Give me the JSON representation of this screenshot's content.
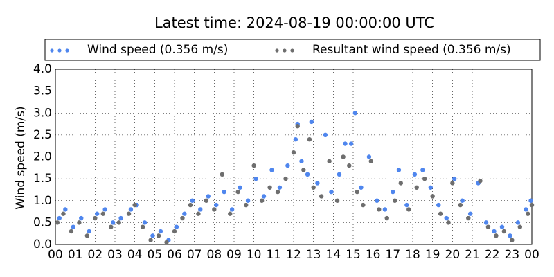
{
  "chart_data": {
    "type": "scatter",
    "title": "Latest time: 2024-08-19 00:00:00 UTC",
    "y_label": "Wind speed (m/s)",
    "xlim": [
      0,
      24
    ],
    "ylim": [
      0,
      4
    ],
    "grid": true,
    "legend": "top",
    "xticks": [
      {
        "value": 0,
        "label": "00"
      },
      {
        "value": 1,
        "label": "01"
      },
      {
        "value": 2,
        "label": "02"
      },
      {
        "value": 3,
        "label": "03"
      },
      {
        "value": 4,
        "label": "04"
      },
      {
        "value": 5,
        "label": "05"
      },
      {
        "value": 6,
        "label": "06"
      },
      {
        "value": 7,
        "label": "07"
      },
      {
        "value": 8,
        "label": "08"
      },
      {
        "value": 9,
        "label": "09"
      },
      10,
      11,
      12,
      13,
      14,
      15,
      16,
      17,
      18,
      19,
      20,
      21,
      22,
      23,
      {
        "value": 24,
        "label": "00"
      }
    ],
    "yticks": [
      {
        "value": 0,
        "label": "0.0"
      },
      {
        "value": 0.5,
        "label": "0.5"
      },
      {
        "value": 1,
        "label": "1.0"
      },
      {
        "value": 1.5,
        "label": "1.5"
      },
      {
        "value": 2,
        "label": "2.0"
      },
      {
        "value": 2.5,
        "label": "2.5"
      },
      {
        "value": 3,
        "label": "3.0"
      },
      {
        "value": 3.5,
        "label": "3.5"
      },
      {
        "value": 4,
        "label": "4.0"
      }
    ],
    "series": [
      {
        "name": "Wind speed (0.356 m/s)",
        "color": "#4f86ee",
        "x": [
          0.2,
          0.5,
          0.9,
          1.3,
          1.7,
          2.1,
          2.5,
          2.9,
          3.3,
          3.8,
          4.1,
          4.5,
          4.9,
          5.3,
          5.7,
          6.1,
          6.5,
          6.9,
          7.3,
          7.7,
          8.1,
          8.5,
          8.9,
          9.3,
          9.7,
          10.1,
          10.5,
          10.9,
          11.3,
          11.7,
          12.1,
          12.2,
          12.4,
          12.7,
          12.9,
          13.2,
          13.6,
          13.9,
          14.3,
          14.6,
          14.9,
          15.1,
          15.4,
          15.8,
          16.2,
          16.6,
          17.0,
          17.3,
          17.7,
          18.1,
          18.5,
          18.9,
          19.3,
          19.7,
          20.1,
          20.5,
          20.9,
          21.3,
          21.7,
          22.1,
          22.5,
          22.9,
          23.3,
          23.7,
          23.95
        ],
        "values": [
          0.6,
          0.8,
          0.4,
          0.6,
          0.3,
          0.7,
          0.8,
          0.5,
          0.6,
          0.8,
          0.9,
          0.5,
          0.2,
          0.3,
          0.1,
          0.4,
          0.7,
          1.0,
          0.8,
          1.1,
          0.9,
          1.2,
          0.8,
          1.3,
          1.0,
          1.5,
          1.1,
          1.7,
          1.3,
          1.8,
          2.4,
          2.75,
          1.9,
          1.6,
          2.8,
          1.4,
          2.5,
          1.2,
          1.6,
          2.3,
          2.3,
          3.0,
          1.3,
          2.0,
          1.0,
          0.8,
          1.2,
          1.7,
          0.9,
          1.6,
          1.7,
          1.3,
          0.9,
          0.6,
          1.5,
          1.0,
          0.7,
          1.4,
          0.5,
          0.3,
          0.4,
          0.2,
          0.5,
          0.8,
          1.0
        ]
      },
      {
        "name": "Resultant wind speed (0.356 m/s)",
        "color": "#6e6e6e",
        "x": [
          0.1,
          0.4,
          0.8,
          1.2,
          1.6,
          2.0,
          2.4,
          2.8,
          3.2,
          3.7,
          4.0,
          4.4,
          4.8,
          5.2,
          5.6,
          6.0,
          6.4,
          6.8,
          7.2,
          7.6,
          8.0,
          8.4,
          8.8,
          9.2,
          9.6,
          10.0,
          10.4,
          10.8,
          11.2,
          11.6,
          12.0,
          12.2,
          12.5,
          12.8,
          13.0,
          13.4,
          13.8,
          14.2,
          14.5,
          14.8,
          15.2,
          15.5,
          15.9,
          16.3,
          16.7,
          17.1,
          17.4,
          17.8,
          18.2,
          18.6,
          19.0,
          19.4,
          19.8,
          20.0,
          20.4,
          20.8,
          21.4,
          21.8,
          22.2,
          22.6,
          23.0,
          23.4,
          23.8,
          24.0
        ],
        "values": [
          0.5,
          0.7,
          0.3,
          0.5,
          0.2,
          0.6,
          0.7,
          0.4,
          0.5,
          0.7,
          0.9,
          0.4,
          0.1,
          0.2,
          0.05,
          0.3,
          0.6,
          0.9,
          0.7,
          1.0,
          0.8,
          1.6,
          0.7,
          1.2,
          0.9,
          1.8,
          1.0,
          1.3,
          1.2,
          1.5,
          2.1,
          2.7,
          1.7,
          2.4,
          1.3,
          1.1,
          1.9,
          1.0,
          2.0,
          1.8,
          1.2,
          0.9,
          1.9,
          0.8,
          0.6,
          1.0,
          1.4,
          0.8,
          1.3,
          1.5,
          1.1,
          0.7,
          0.5,
          1.4,
          0.9,
          0.6,
          1.45,
          0.4,
          0.2,
          0.3,
          0.1,
          0.4,
          0.7,
          0.9
        ]
      }
    ]
  }
}
